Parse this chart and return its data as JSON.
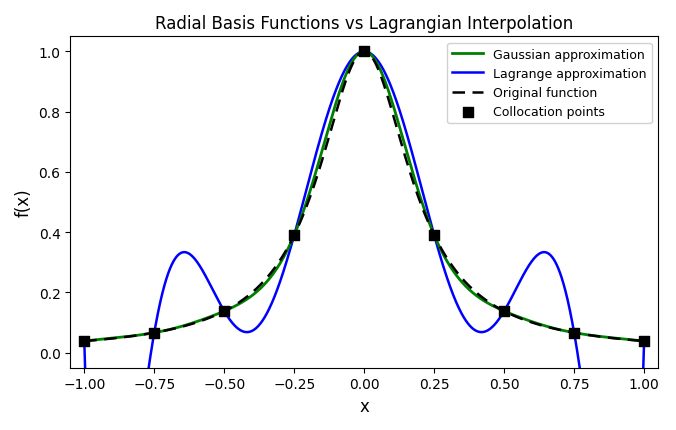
{
  "title": "Radial Basis Functions vs Lagrangian Interpolation",
  "xlabel": "x",
  "ylabel": "f(x)",
  "xlim": [
    -1.05,
    1.05
  ],
  "ylim": [
    -0.05,
    1.05
  ],
  "n_collocation": 9,
  "c": 5.0,
  "epsilon_rbf": 5.0,
  "gaussian_color": "#008000",
  "lagrange_color": "#0000ff",
  "original_color": "#000000",
  "collocation_color": "#000000",
  "gaussian_label": "Gaussian approximation",
  "lagrange_label": "Lagrange approximation",
  "original_label": "Original function",
  "collocation_label": "Collocation points",
  "gaussian_linewidth": 2.0,
  "lagrange_linewidth": 1.8,
  "original_linewidth": 1.8,
  "figsize": [
    6.76,
    4.31
  ],
  "dpi": 100
}
